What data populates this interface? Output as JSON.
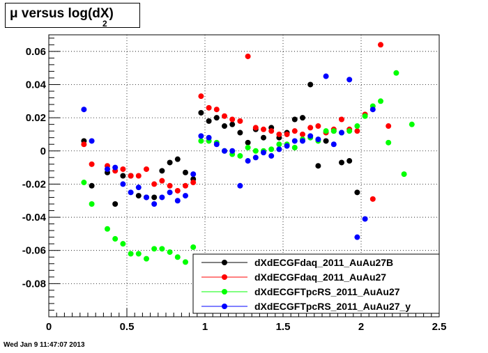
{
  "title": {
    "main": "μ versus log(dX)",
    "subscript": "2"
  },
  "timestamp": "Wed Jan  9 11:47:07 2013",
  "chart_data": {
    "type": "scatter",
    "xlim": [
      0,
      2.5
    ],
    "ylim": [
      -0.1,
      0.07
    ],
    "x_ticks": [
      "0",
      "0.5",
      "1",
      "1.5",
      "2",
      "2.5"
    ],
    "y_ticks": [
      "-0.08",
      "-0.06",
      "-0.04",
      "-0.02",
      "0",
      "0.02",
      "0.04",
      "0.06"
    ],
    "grid": true,
    "legend_position": "bottom-right",
    "series": [
      {
        "name": "dXdECGFdaq_2011_AuAu27B",
        "color": "#000000",
        "points": [
          [
            0.225,
            0.006
          ],
          [
            0.275,
            -0.021
          ],
          [
            0.375,
            -0.013
          ],
          [
            0.425,
            -0.032
          ],
          [
            0.475,
            -0.015
          ],
          [
            0.525,
            -0.015
          ],
          [
            0.575,
            -0.027
          ],
          [
            0.625,
            -0.028
          ],
          [
            0.675,
            -0.028
          ],
          [
            0.725,
            -0.012
          ],
          [
            0.775,
            -0.007
          ],
          [
            0.825,
            -0.005
          ],
          [
            0.875,
            -0.013
          ],
          [
            0.925,
            -0.017
          ],
          [
            0.975,
            0.023
          ],
          [
            1.025,
            0.018
          ],
          [
            1.075,
            0.02
          ],
          [
            1.125,
            0.015
          ],
          [
            1.175,
            0.016
          ],
          [
            1.225,
            0.011
          ],
          [
            1.275,
            0.005
          ],
          [
            1.325,
            0.013
          ],
          [
            1.375,
            0.008
          ],
          [
            1.425,
            0.014
          ],
          [
            1.475,
            0.008
          ],
          [
            1.525,
            0.011
          ],
          [
            1.575,
            0.019
          ],
          [
            1.625,
            0.02
          ],
          [
            1.675,
            0.04
          ],
          [
            1.725,
            -0.009
          ],
          [
            1.775,
            0.006
          ],
          [
            1.825,
            0.012
          ],
          [
            1.875,
            -0.007
          ],
          [
            1.925,
            -0.006
          ],
          [
            1.975,
            -0.025
          ]
        ]
      },
      {
        "name": "dXdECGFdaq_2011_AuAu27",
        "color": "#ff0000",
        "points": [
          [
            0.225,
            0.004
          ],
          [
            0.275,
            -0.008
          ],
          [
            0.375,
            -0.009
          ],
          [
            0.425,
            -0.012
          ],
          [
            0.475,
            -0.011
          ],
          [
            0.525,
            -0.015
          ],
          [
            0.575,
            -0.015
          ],
          [
            0.625,
            -0.011
          ],
          [
            0.675,
            -0.02
          ],
          [
            0.725,
            -0.018
          ],
          [
            0.775,
            -0.021
          ],
          [
            0.825,
            -0.024
          ],
          [
            0.875,
            -0.021
          ],
          [
            0.925,
            -0.019
          ],
          [
            0.975,
            0.033
          ],
          [
            1.025,
            0.026
          ],
          [
            1.075,
            0.025
          ],
          [
            1.125,
            0.021
          ],
          [
            1.175,
            0.019
          ],
          [
            1.225,
            0.018
          ],
          [
            1.275,
            0.057
          ],
          [
            1.325,
            0.014
          ],
          [
            1.375,
            0.013
          ],
          [
            1.425,
            0.012
          ],
          [
            1.475,
            0.01
          ],
          [
            1.525,
            0.01
          ],
          [
            1.575,
            0.012
          ],
          [
            1.625,
            0.01
          ],
          [
            1.675,
            0.014
          ],
          [
            1.725,
            0.015
          ],
          [
            1.775,
            0.011
          ],
          [
            1.825,
            0.013
          ],
          [
            1.875,
            0.019
          ],
          [
            1.925,
            0.013
          ],
          [
            1.975,
            0.012
          ],
          [
            2.025,
            0.022
          ],
          [
            2.075,
            -0.029
          ],
          [
            2.125,
            0.064
          ],
          [
            2.175,
            0.015
          ]
        ]
      },
      {
        "name": "dXdECGFTpcRS_2011_AuAu27",
        "color": "#00ff00",
        "points": [
          [
            0.225,
            -0.019
          ],
          [
            0.275,
            -0.032
          ],
          [
            0.375,
            -0.047
          ],
          [
            0.425,
            -0.053
          ],
          [
            0.475,
            -0.056
          ],
          [
            0.525,
            -0.062
          ],
          [
            0.575,
            -0.062
          ],
          [
            0.625,
            -0.065
          ],
          [
            0.675,
            -0.059
          ],
          [
            0.725,
            -0.059
          ],
          [
            0.775,
            -0.061
          ],
          [
            0.825,
            -0.064
          ],
          [
            0.875,
            -0.067
          ],
          [
            0.925,
            -0.058
          ],
          [
            0.975,
            0.006
          ],
          [
            1.025,
            0.006
          ],
          [
            1.075,
            0.005
          ],
          [
            1.125,
            0.0
          ],
          [
            1.175,
            -0.002
          ],
          [
            1.225,
            -0.003
          ],
          [
            1.275,
            0.002
          ],
          [
            1.325,
            0.0
          ],
          [
            1.375,
            0.0
          ],
          [
            1.425,
            0.001
          ],
          [
            1.475,
            0.004
          ],
          [
            1.525,
            0.004
          ],
          [
            1.575,
            0.002
          ],
          [
            1.625,
            0.007
          ],
          [
            1.675,
            0.008
          ],
          [
            1.725,
            0.006
          ],
          [
            1.775,
            0.012
          ],
          [
            1.825,
            0.012
          ],
          [
            1.875,
            0.011
          ],
          [
            1.925,
            0.012
          ],
          [
            1.975,
            0.015
          ],
          [
            2.025,
            0.021
          ],
          [
            2.075,
            0.027
          ],
          [
            2.125,
            0.03
          ],
          [
            2.175,
            0.005
          ],
          [
            2.225,
            0.047
          ],
          [
            2.275,
            -0.014
          ],
          [
            2.325,
            0.016
          ]
        ]
      },
      {
        "name": "dXdECGFTpcRS_2011_AuAu27_y",
        "color": "#0000ff",
        "points": [
          [
            0.225,
            0.025
          ],
          [
            0.275,
            0.006
          ],
          [
            0.375,
            -0.011
          ],
          [
            0.425,
            -0.01
          ],
          [
            0.475,
            -0.02
          ],
          [
            0.525,
            -0.025
          ],
          [
            0.575,
            -0.022
          ],
          [
            0.625,
            -0.028
          ],
          [
            0.675,
            -0.032
          ],
          [
            0.725,
            -0.028
          ],
          [
            0.775,
            -0.025
          ],
          [
            0.825,
            -0.03
          ],
          [
            0.875,
            -0.027
          ],
          [
            0.925,
            -0.014
          ],
          [
            0.975,
            0.009
          ],
          [
            1.025,
            0.008
          ],
          [
            1.075,
            0.004
          ],
          [
            1.125,
            0.0
          ],
          [
            1.175,
            0.0
          ],
          [
            1.225,
            -0.021
          ],
          [
            1.275,
            -0.006
          ],
          [
            1.325,
            -0.004
          ],
          [
            1.375,
            -0.001
          ],
          [
            1.425,
            -0.003
          ],
          [
            1.475,
            0.001
          ],
          [
            1.525,
            0.003
          ],
          [
            1.575,
            0.006
          ],
          [
            1.625,
            0.006
          ],
          [
            1.675,
            0.009
          ],
          [
            1.725,
            0.007
          ],
          [
            1.775,
            0.045
          ],
          [
            1.825,
            0.004
          ],
          [
            1.875,
            0.011
          ],
          [
            1.925,
            0.043
          ],
          [
            1.975,
            -0.052
          ],
          [
            2.025,
            -0.041
          ],
          [
            2.075,
            0.025
          ]
        ]
      }
    ]
  }
}
